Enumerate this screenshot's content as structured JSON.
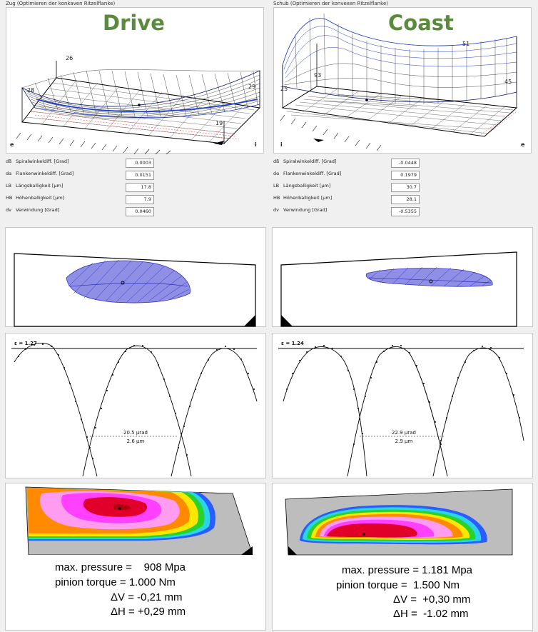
{
  "drive": {
    "window_title": "Zug (Optimieren der konkaven Ritzelflanke)",
    "big_label": "Drive",
    "plot_labels": {
      "left_front": "28",
      "top_left": "26",
      "right": "29",
      "bottom_right": "19",
      "corner_left": "e",
      "corner_right": "i"
    },
    "params": [
      {
        "sym": "dß",
        "label": "Spiralwinkeldiff. [Grad]",
        "value": "0.0003"
      },
      {
        "sym": "dα",
        "label": "Flankenwinkeldiff. [Grad]",
        "value": "0.0151"
      },
      {
        "sym": "LB",
        "label": "Längsballigkeit [µm]",
        "value": "17.8"
      },
      {
        "sym": "HB",
        "label": "Höhenballigkeit [µm]",
        "value": "7.9"
      },
      {
        "sym": "dv",
        "label": "Verwindung [Grad]",
        "value": "0.0460"
      }
    ],
    "epsilon": "ε = 1.27",
    "deviation_urad": "20.5 µrad",
    "deviation_um": "2.6 µm",
    "summary": {
      "pressure": "max. pressure =    908 Mpa",
      "torque": "pinion torque = 1.000 Nm",
      "dv": "ΔV = -0,21 mm",
      "dh": "ΔH = +0,29 mm"
    }
  },
  "coast": {
    "window_title": "Schub (Optimieren der konvexen Ritzelflanke)",
    "big_label": "Coast",
    "plot_labels": {
      "left_front": "25",
      "top_left": "93",
      "top_right": "51",
      "right": "45",
      "corner_left": "i",
      "corner_right": "e"
    },
    "params": [
      {
        "sym": "dß",
        "label": "Spiralwinkeldiff. [Grad]",
        "value": "-0.0448"
      },
      {
        "sym": "dα",
        "label": "Flankenwinkeldiff. [Grad]",
        "value": "0.1979"
      },
      {
        "sym": "LB",
        "label": "Längsballigkeit [µm]",
        "value": "30.7"
      },
      {
        "sym": "HB",
        "label": "Höhenballigkeit [µm]",
        "value": "28.1"
      },
      {
        "sym": "dv",
        "label": "Verwindung [Grad]",
        "value": "-0.5355"
      }
    ],
    "epsilon": "ε = 1.24",
    "deviation_urad": "22.9 µrad",
    "deviation_um": "2.9 µm",
    "summary": {
      "pressure": "max. pressure = 1.181 Mpa",
      "torque": "pinion torque =  1.500 Nm",
      "dv": "ΔV =  +0,30 mm",
      "dh": "ΔH =  -1.02 mm"
    }
  },
  "colors": {
    "drive_label": "#5a8a3c",
    "contact_fill": "#8f8fe6",
    "mesh": "#000000",
    "mesh_edge": "#1f3fcf",
    "pressure_red": "#e0002a",
    "pressure_magenta": "#ff40ff",
    "pressure_pink": "#ff9cf0",
    "pressure_orange": "#ff8a00",
    "pressure_yellow": "#ffe600",
    "pressure_green": "#28d228",
    "pressure_cyan": "#29d5e6",
    "pressure_blue": "#2a5cff"
  }
}
